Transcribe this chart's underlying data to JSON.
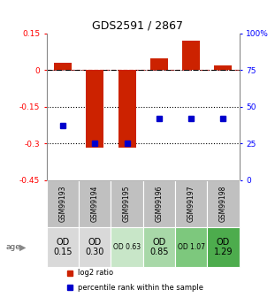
{
  "title": "GDS2591 / 2867",
  "samples": [
    "GSM99193",
    "GSM99194",
    "GSM99195",
    "GSM99196",
    "GSM99197",
    "GSM99198"
  ],
  "log2_ratio": [
    0.03,
    -0.315,
    -0.315,
    0.05,
    0.12,
    0.02
  ],
  "percentile_rank": [
    37,
    25,
    25,
    42,
    42,
    42
  ],
  "bar_color": "#cc2200",
  "dot_color": "#0000cc",
  "ylim_left": [
    -0.45,
    0.15
  ],
  "ylim_right": [
    0,
    100
  ],
  "yticks_left": [
    0.15,
    0,
    -0.15,
    -0.3,
    -0.45
  ],
  "ytick_labels_left": [
    "0.15",
    "0",
    "-0.15",
    "-0.3",
    "-0.45"
  ],
  "yticks_right": [
    100,
    75,
    50,
    25,
    0
  ],
  "ytick_labels_right": [
    "100%",
    "75",
    "50",
    "25",
    "0"
  ],
  "dotted_lines": [
    -0.15,
    -0.3
  ],
  "age_labels": [
    "OD\n0.15",
    "OD\n0.30",
    "OD 0.63",
    "OD\n0.85",
    "OD 1.07",
    "OD\n1.29"
  ],
  "age_label_sizes": [
    7,
    7,
    5.5,
    7,
    5.5,
    7
  ],
  "age_bg_colors": [
    "#d9d9d9",
    "#d9d9d9",
    "#c8e6c8",
    "#a8d8a8",
    "#7dc87d",
    "#4dac4d"
  ],
  "sample_bg_color": "#c0c0c0",
  "legend_log2": "log2 ratio",
  "legend_pct": "percentile rank within the sample",
  "background_color": "#ffffff"
}
